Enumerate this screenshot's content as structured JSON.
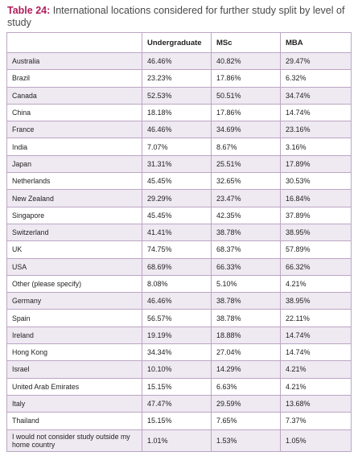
{
  "caption": {
    "label": "Table 24:",
    "text": " International locations considered for further study split by level of study"
  },
  "headers": [
    "",
    "Undergraduate",
    "MSc",
    "MBA"
  ],
  "rows": [
    {
      "location": "Australia",
      "ug": "46.46%",
      "msc": "40.82%",
      "mba": "29.47%"
    },
    {
      "location": "Brazil",
      "ug": "23.23%",
      "msc": "17.86%",
      "mba": "6.32%"
    },
    {
      "location": "Canada",
      "ug": "52.53%",
      "msc": "50.51%",
      "mba": "34.74%"
    },
    {
      "location": "China",
      "ug": "18.18%",
      "msc": "17.86%",
      "mba": "14.74%"
    },
    {
      "location": "France",
      "ug": "46.46%",
      "msc": "34.69%",
      "mba": "23.16%"
    },
    {
      "location": "India",
      "ug": "7.07%",
      "msc": "8.67%",
      "mba": "3.16%"
    },
    {
      "location": "Japan",
      "ug": "31.31%",
      "msc": "25.51%",
      "mba": "17.89%"
    },
    {
      "location": "Netherlands",
      "ug": "45.45%",
      "msc": "32.65%",
      "mba": "30.53%"
    },
    {
      "location": "New Zealand",
      "ug": "29.29%",
      "msc": "23.47%",
      "mba": "16.84%"
    },
    {
      "location": "Singapore",
      "ug": "45.45%",
      "msc": "42.35%",
      "mba": "37.89%"
    },
    {
      "location": "Switzerland",
      "ug": "41.41%",
      "msc": "38.78%",
      "mba": "38.95%"
    },
    {
      "location": "UK",
      "ug": "74.75%",
      "msc": "68.37%",
      "mba": "57.89%"
    },
    {
      "location": "USA",
      "ug": "68.69%",
      "msc": "66.33%",
      "mba": "66.32%"
    },
    {
      "location": "Other (please specify)",
      "ug": "8.08%",
      "msc": "5.10%",
      "mba": "4.21%"
    },
    {
      "location": "Germany",
      "ug": "46.46%",
      "msc": "38.78%",
      "mba": "38.95%"
    },
    {
      "location": "Spain",
      "ug": "56.57%",
      "msc": "38.78%",
      "mba": "22.11%"
    },
    {
      "location": "Ireland",
      "ug": "19.19%",
      "msc": "18.88%",
      "mba": "14.74%"
    },
    {
      "location": "Hong Kong",
      "ug": "34.34%",
      "msc": "27.04%",
      "mba": "14.74%"
    },
    {
      "location": "Israel",
      "ug": "10.10%",
      "msc": "14.29%",
      "mba": "4.21%"
    },
    {
      "location": "United Arab Emirates",
      "ug": "15.15%",
      "msc": "6.63%",
      "mba": "4.21%"
    },
    {
      "location": "Italy",
      "ug": "47.47%",
      "msc": "29.59%",
      "mba": "13.68%"
    },
    {
      "location": "Thailand",
      "ug": "15.15%",
      "msc": "7.65%",
      "mba": "7.37%"
    },
    {
      "location": "I would not consider study outside my home country",
      "ug": "1.01%",
      "msc": "1.53%",
      "mba": "1.05%"
    }
  ],
  "colors": {
    "caption_label": "#b01e5a",
    "row_shade": "#efe9f2",
    "border": "#bba6c3"
  }
}
